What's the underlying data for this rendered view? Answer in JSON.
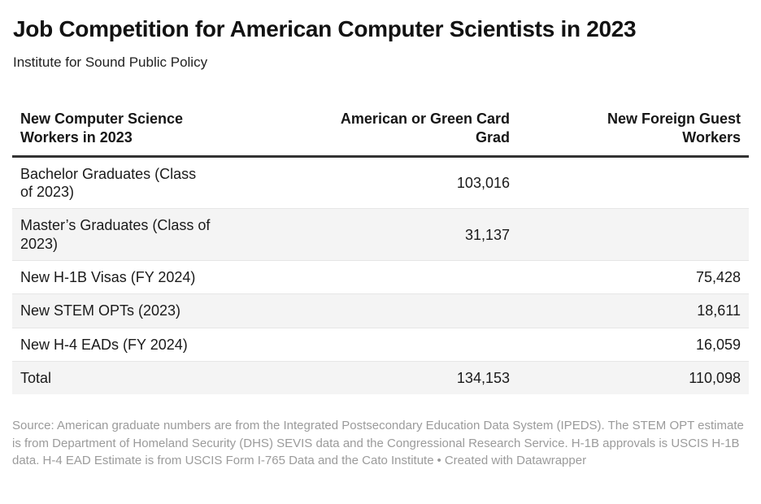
{
  "header": {
    "title": "Job Competition for American Computer Scientists in 2023",
    "subtitle": "Institute for Sound Public Policy"
  },
  "table": {
    "columns": [
      {
        "label": "New Computer Science\nWorkers in 2023",
        "align": "left"
      },
      {
        "label": "American or Green Card\nGrad",
        "align": "right"
      },
      {
        "label": "New Foreign Guest\nWorkers",
        "align": "right"
      }
    ],
    "rows": [
      {
        "label": "Bachelor Graduates (Class\nof 2023)",
        "american": "103,016",
        "foreign": ""
      },
      {
        "label": "Master’s Graduates (Class of\n2023)",
        "american": "31,137",
        "foreign": ""
      },
      {
        "label": "New H-1B Visas (FY 2024)",
        "american": "",
        "foreign": "75,428"
      },
      {
        "label": "New STEM OPTs (2023)",
        "american": "",
        "foreign": "18,611"
      },
      {
        "label": "New H-4 EADs (FY 2024)",
        "american": "",
        "foreign": "16,059"
      },
      {
        "label": "Total",
        "american": "134,153",
        "foreign": "110,098"
      }
    ]
  },
  "footer": {
    "source": "Source: American graduate numbers are from the Integrated Postsecondary Education Data System (IPEDS). The STEM OPT estimate is from Department of Homeland Security (DHS) SEVIS data and the Congressional Research Service. H-1B approvals is USCIS H-1B data. H-4 EAD Estimate is from USCIS Form I-765 Data and the Cato Institute",
    "separator": "•",
    "attribution": "Created with Datawrapper"
  },
  "chart_data": {
    "type": "table",
    "title": "Job Competition for American Computer Scientists in 2023",
    "subtitle": "Institute for Sound Public Policy",
    "columns": [
      "New Computer Science Workers in 2023",
      "American or Green Card Grad",
      "New Foreign Guest Workers"
    ],
    "rows": [
      {
        "category": "Bachelor Graduates (Class of 2023)",
        "american_or_green_card_grad": 103016,
        "new_foreign_guest_workers": null
      },
      {
        "category": "Master’s Graduates (Class of 2023)",
        "american_or_green_card_grad": 31137,
        "new_foreign_guest_workers": null
      },
      {
        "category": "New H-1B Visas (FY 2024)",
        "american_or_green_card_grad": null,
        "new_foreign_guest_workers": 75428
      },
      {
        "category": "New STEM OPTs (2023)",
        "american_or_green_card_grad": null,
        "new_foreign_guest_workers": 18611
      },
      {
        "category": "New H-4 EADs (FY 2024)",
        "american_or_green_card_grad": null,
        "new_foreign_guest_workers": 16059
      },
      {
        "category": "Total",
        "american_or_green_card_grad": 134153,
        "new_foreign_guest_workers": 110098
      }
    ],
    "layout": {
      "zebra_stripes": true,
      "stripe_color": "#f4f4f4",
      "header_rule_color": "#333333",
      "row_divider_color": "#e6e6e6",
      "footer_text_color": "#9b9b9b"
    }
  }
}
